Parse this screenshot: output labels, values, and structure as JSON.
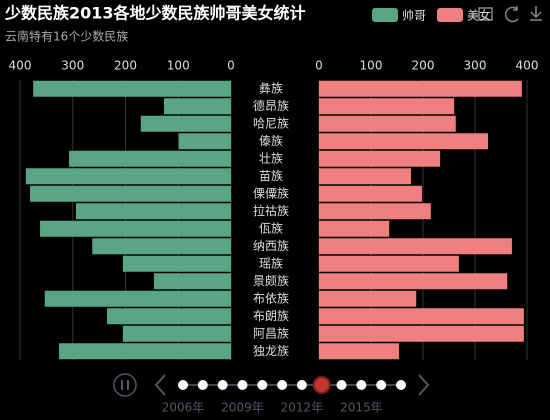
{
  "chart_data": {
    "type": "bar",
    "title": "少数民族2013各地少数民族帅哥美女统计",
    "subtitle": "云南特有16个少数民族",
    "categories": [
      "彝族",
      "德昂族",
      "哈尼族",
      "傣族",
      "壮族",
      "苗族",
      "傈僳族",
      "拉祜族",
      "佤族",
      "纳西族",
      "瑶族",
      "景颇族",
      "布依族",
      "布朗族",
      "阿昌族",
      "独龙族"
    ],
    "series": [
      {
        "name": "帅哥",
        "color": "#5aa585",
        "values": [
          375,
          127,
          171,
          99,
          307,
          389,
          381,
          294,
          362,
          263,
          205,
          146,
          353,
          235,
          205,
          326
        ]
      },
      {
        "name": "美女",
        "color": "#f08080",
        "values": [
          390,
          260,
          263,
          325,
          233,
          177,
          198,
          215,
          135,
          371,
          269,
          362,
          187,
          394,
          394,
          154
        ]
      }
    ],
    "xlim": [
      0,
      400
    ],
    "xticks": [
      0,
      100,
      200,
      300,
      400
    ],
    "grid": true,
    "timeline": {
      "labels": [
        "2006年",
        null,
        null,
        "2009年",
        null,
        null,
        "2012年",
        null,
        null,
        "2015年",
        null,
        null
      ],
      "current": 7
    }
  }
}
